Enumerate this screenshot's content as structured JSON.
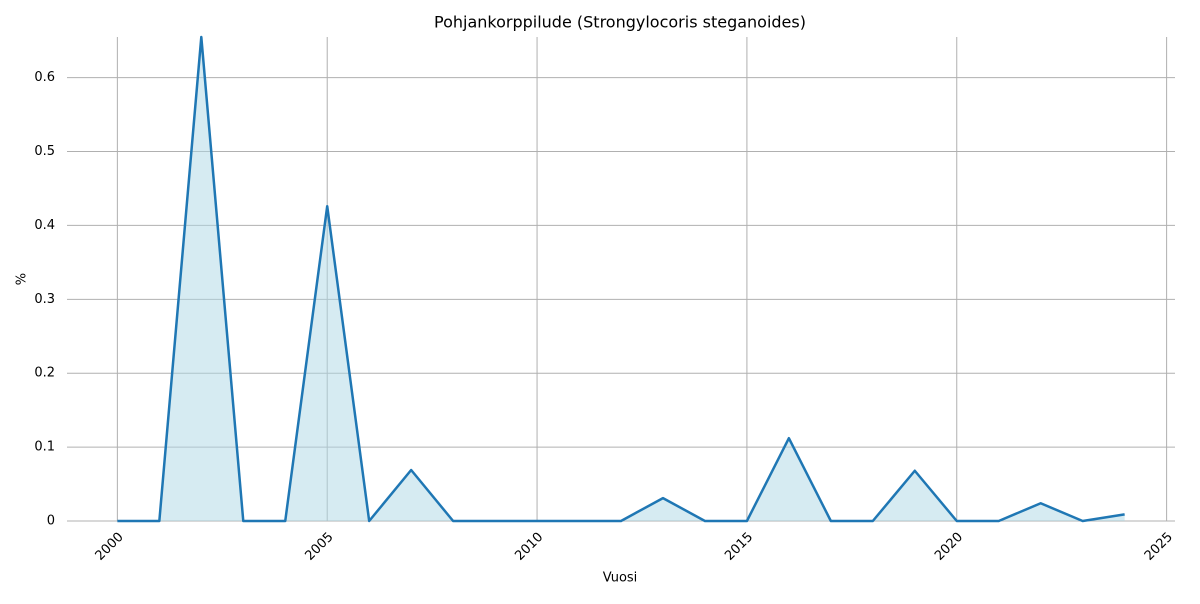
{
  "chart_data": {
    "type": "area",
    "title": "Pohjankorppilude (Strongylocoris steganoides)",
    "x_label": "Vuosi",
    "y_label": "%",
    "x": [
      2000,
      2001,
      2002,
      2003,
      2004,
      2005,
      2006,
      2007,
      2008,
      2009,
      2010,
      2011,
      2012,
      2013,
      2014,
      2015,
      2016,
      2017,
      2018,
      2019,
      2020,
      2021,
      2022,
      2023,
      2024
    ],
    "series": [
      {
        "name": "%",
        "color": "#1f77b4",
        "fill": "#add8e6",
        "values": [
          0,
          0,
          0.655,
          0,
          0,
          0.426,
          0,
          0.069,
          0,
          0,
          0,
          0,
          0,
          0.031,
          0,
          0,
          0.112,
          0,
          0,
          0.068,
          0,
          0,
          0.024,
          0,
          0.009
        ]
      }
    ],
    "xlim": [
      1998.8,
      2025.2
    ],
    "xticks": [
      2000,
      2005,
      2010,
      2015,
      2020,
      2025
    ],
    "ylim": [
      0,
      0.655
    ],
    "yticks": [
      0.0,
      0.1,
      0.2,
      0.3,
      0.4,
      0.5,
      0.6
    ],
    "grid": true
  }
}
